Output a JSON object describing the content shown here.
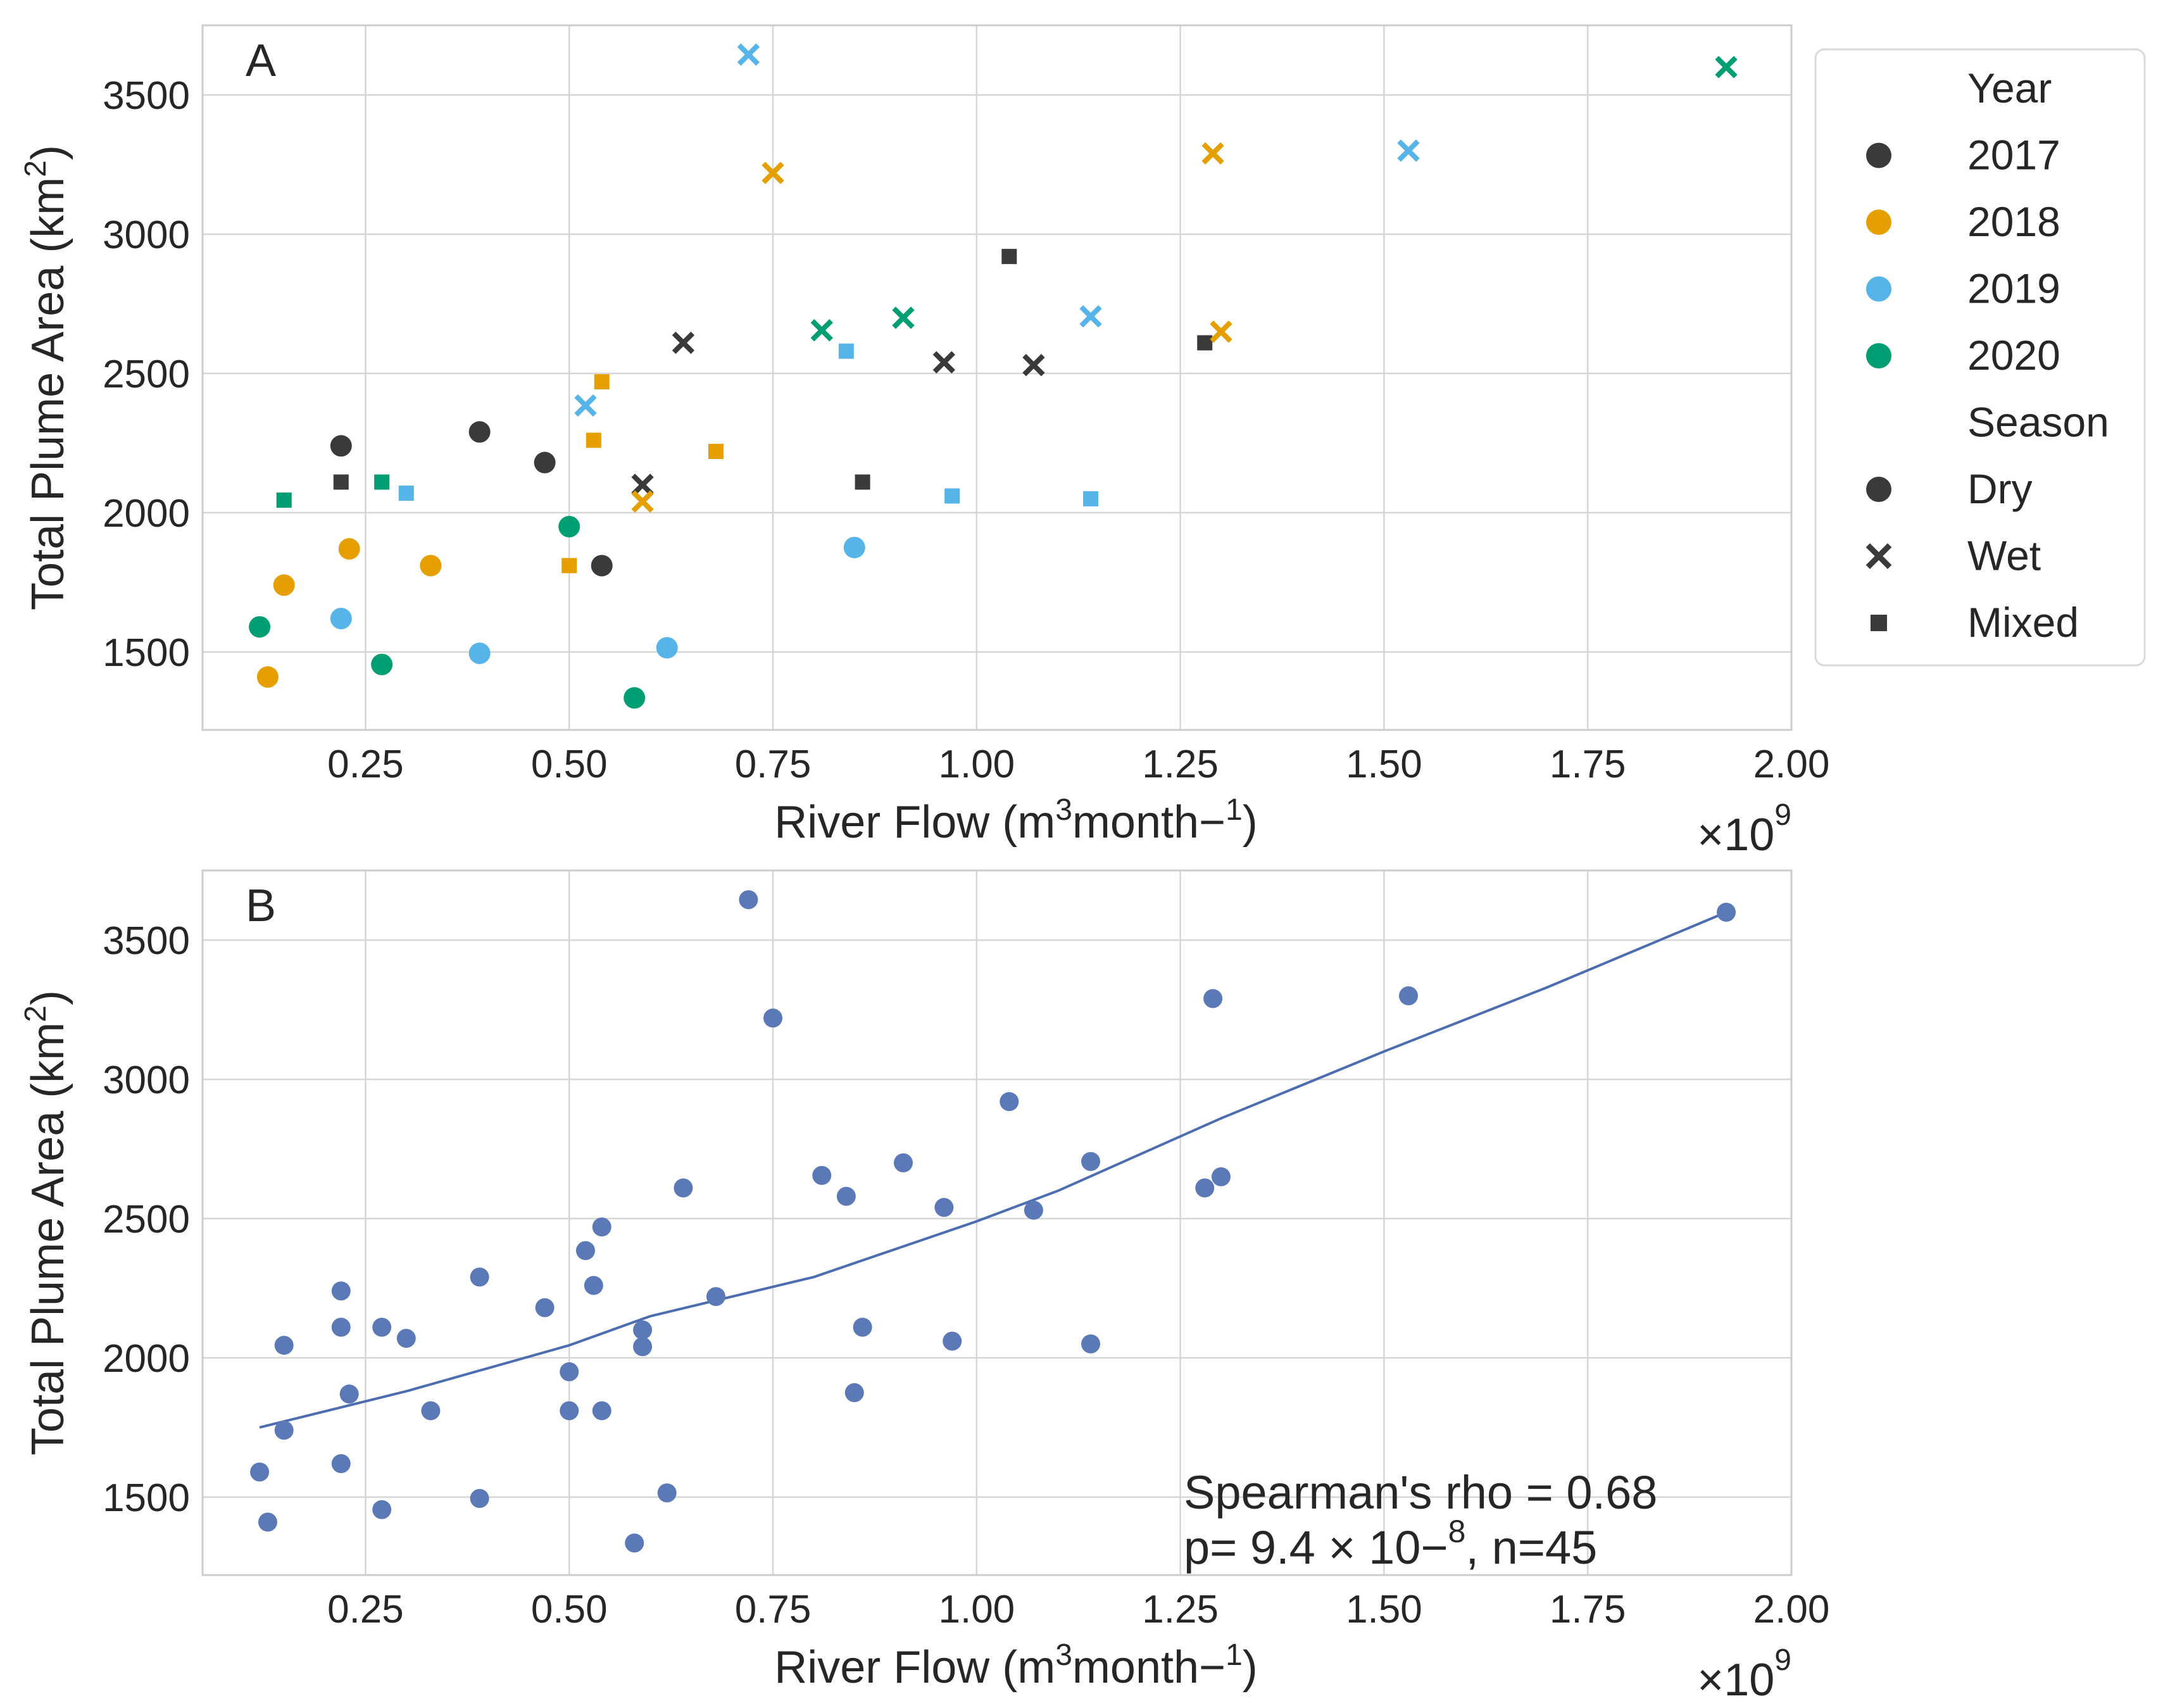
{
  "chart_data": [
    {
      "panel": "A",
      "type": "scatter",
      "xlabel": "River Flow (m3month−1)",
      "ylabel": "Total Plume Area (km2)",
      "x_scale_label": "×10⁹",
      "xlim": [
        0.05,
        2.0
      ],
      "ylim": [
        1220,
        3750
      ],
      "xticks": [
        "0.25",
        "0.50",
        "0.75",
        "1.00",
        "1.25",
        "1.50",
        "1.75",
        "2.00"
      ],
      "xtick_values": [
        0.25,
        0.5,
        0.75,
        1.0,
        1.25,
        1.5,
        1.75,
        2.0
      ],
      "yticks": [
        "1500",
        "2000",
        "2500",
        "3000",
        "3500"
      ],
      "ytick_values": [
        1500,
        2000,
        2500,
        3000,
        3500
      ],
      "grid": true,
      "legend_position": "right-outside",
      "legend": {
        "year_title": "Year",
        "years": [
          "2017",
          "2018",
          "2019",
          "2020"
        ],
        "season_title": "Season",
        "seasons": [
          "Dry",
          "Wet",
          "Mixed"
        ]
      },
      "colors": {
        "2017": "#3a3a3a",
        "2018": "#e69f00",
        "2019": "#56b4e9",
        "2020": "#009e73"
      },
      "points": [
        {
          "x": 0.22,
          "y": 2240,
          "year": "2017",
          "season": "Dry"
        },
        {
          "x": 0.39,
          "y": 2290,
          "year": "2017",
          "season": "Dry"
        },
        {
          "x": 0.47,
          "y": 2180,
          "year": "2017",
          "season": "Dry"
        },
        {
          "x": 0.54,
          "y": 1810,
          "year": "2017",
          "season": "Dry"
        },
        {
          "x": 0.59,
          "y": 2100,
          "year": "2017",
          "season": "Wet"
        },
        {
          "x": 0.64,
          "y": 2610,
          "year": "2017",
          "season": "Wet"
        },
        {
          "x": 0.96,
          "y": 2540,
          "year": "2017",
          "season": "Wet"
        },
        {
          "x": 1.07,
          "y": 2530,
          "year": "2017",
          "season": "Wet"
        },
        {
          "x": 0.22,
          "y": 2110,
          "year": "2017",
          "season": "Mixed"
        },
        {
          "x": 0.86,
          "y": 2110,
          "year": "2017",
          "season": "Mixed"
        },
        {
          "x": 1.04,
          "y": 2920,
          "year": "2017",
          "season": "Mixed"
        },
        {
          "x": 1.28,
          "y": 2610,
          "year": "2017",
          "season": "Mixed"
        },
        {
          "x": 0.13,
          "y": 1410,
          "year": "2018",
          "season": "Dry"
        },
        {
          "x": 0.15,
          "y": 1740,
          "year": "2018",
          "season": "Dry"
        },
        {
          "x": 0.23,
          "y": 1870,
          "year": "2018",
          "season": "Dry"
        },
        {
          "x": 0.33,
          "y": 1810,
          "year": "2018",
          "season": "Dry"
        },
        {
          "x": 0.59,
          "y": 2040,
          "year": "2018",
          "season": "Wet"
        },
        {
          "x": 0.75,
          "y": 3220,
          "year": "2018",
          "season": "Wet"
        },
        {
          "x": 1.29,
          "y": 3290,
          "year": "2018",
          "season": "Wet"
        },
        {
          "x": 1.3,
          "y": 2650,
          "year": "2018",
          "season": "Wet"
        },
        {
          "x": 0.5,
          "y": 1810,
          "year": "2018",
          "season": "Mixed"
        },
        {
          "x": 0.53,
          "y": 2260,
          "year": "2018",
          "season": "Mixed"
        },
        {
          "x": 0.54,
          "y": 2470,
          "year": "2018",
          "season": "Mixed"
        },
        {
          "x": 0.68,
          "y": 2220,
          "year": "2018",
          "season": "Mixed"
        },
        {
          "x": 0.22,
          "y": 1620,
          "year": "2019",
          "season": "Dry"
        },
        {
          "x": 0.39,
          "y": 1495,
          "year": "2019",
          "season": "Dry"
        },
        {
          "x": 0.62,
          "y": 1515,
          "year": "2019",
          "season": "Dry"
        },
        {
          "x": 0.85,
          "y": 1875,
          "year": "2019",
          "season": "Dry"
        },
        {
          "x": 0.52,
          "y": 2385,
          "year": "2019",
          "season": "Wet"
        },
        {
          "x": 0.72,
          "y": 3645,
          "year": "2019",
          "season": "Wet"
        },
        {
          "x": 1.14,
          "y": 2705,
          "year": "2019",
          "season": "Wet"
        },
        {
          "x": 1.53,
          "y": 3300,
          "year": "2019",
          "season": "Wet"
        },
        {
          "x": 0.3,
          "y": 2070,
          "year": "2019",
          "season": "Mixed"
        },
        {
          "x": 0.84,
          "y": 2580,
          "year": "2019",
          "season": "Mixed"
        },
        {
          "x": 0.97,
          "y": 2060,
          "year": "2019",
          "season": "Mixed"
        },
        {
          "x": 1.14,
          "y": 2050,
          "year": "2019",
          "season": "Mixed"
        },
        {
          "x": 0.12,
          "y": 1590,
          "year": "2020",
          "season": "Dry"
        },
        {
          "x": 0.27,
          "y": 1455,
          "year": "2020",
          "season": "Dry"
        },
        {
          "x": 0.5,
          "y": 1950,
          "year": "2020",
          "season": "Dry"
        },
        {
          "x": 0.58,
          "y": 1335,
          "year": "2020",
          "season": "Dry"
        },
        {
          "x": 0.81,
          "y": 2655,
          "year": "2020",
          "season": "Wet"
        },
        {
          "x": 0.91,
          "y": 2700,
          "year": "2020",
          "season": "Wet"
        },
        {
          "x": 1.92,
          "y": 3600,
          "year": "2020",
          "season": "Wet"
        },
        {
          "x": 0.15,
          "y": 2045,
          "year": "2020",
          "season": "Mixed"
        },
        {
          "x": 0.27,
          "y": 2110,
          "year": "2020",
          "season": "Mixed"
        }
      ]
    },
    {
      "panel": "B",
      "type": "scatter",
      "xlabel": "River Flow (m3month−1)",
      "ylabel": "Total Plume Area (km2)",
      "x_scale_label": "×10⁹",
      "xlim": [
        0.05,
        2.0
      ],
      "ylim": [
        1220,
        3750
      ],
      "xticks": [
        "0.25",
        "0.50",
        "0.75",
        "1.00",
        "1.25",
        "1.50",
        "1.75",
        "2.00"
      ],
      "xtick_values": [
        0.25,
        0.5,
        0.75,
        1.0,
        1.25,
        1.5,
        1.75,
        2.0
      ],
      "yticks": [
        "1500",
        "2000",
        "2500",
        "3000",
        "3500"
      ],
      "ytick_values": [
        1500,
        2000,
        2500,
        3000,
        3500
      ],
      "grid": true,
      "point_color": "#5b79b6",
      "line_color": "#4c6db0",
      "trend_line": [
        {
          "x": 0.12,
          "y": 1750
        },
        {
          "x": 0.3,
          "y": 1880
        },
        {
          "x": 0.5,
          "y": 2045
        },
        {
          "x": 0.6,
          "y": 2150
        },
        {
          "x": 0.8,
          "y": 2290
        },
        {
          "x": 1.0,
          "y": 2490
        },
        {
          "x": 1.1,
          "y": 2600
        },
        {
          "x": 1.3,
          "y": 2860
        },
        {
          "x": 1.5,
          "y": 3100
        },
        {
          "x": 1.7,
          "y": 3330
        },
        {
          "x": 1.92,
          "y": 3600
        }
      ],
      "annotation": {
        "line1": "Spearman's rho = 0.68",
        "line2_prefix": " p= 9.4 × 10−",
        "line2_exp": "8",
        "line2_suffix": ", n=45"
      }
    }
  ]
}
